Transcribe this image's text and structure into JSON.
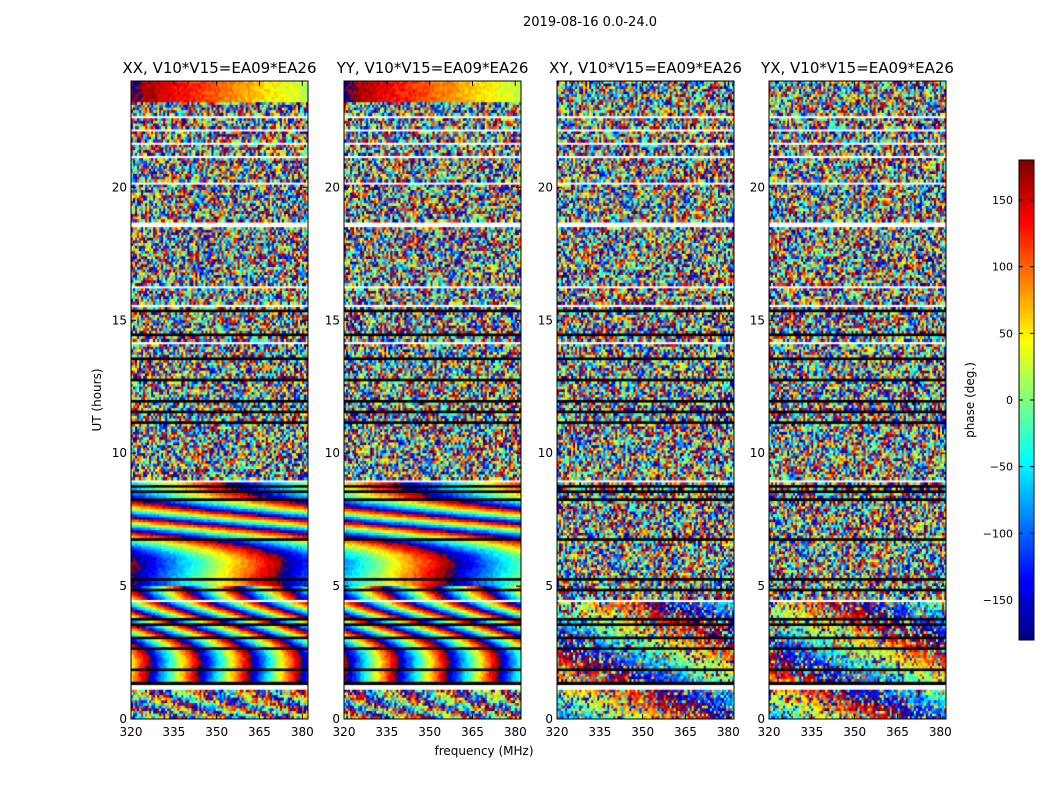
{
  "chart_data": {
    "type": "heatmap",
    "title": "2019-08-16 0.0-24.0",
    "xlabel": "frequency (MHz)",
    "ylabel": "UT (hours)",
    "x_range": [
      320,
      382
    ],
    "y_range": [
      0,
      24
    ],
    "x_ticks": [
      320,
      335,
      350,
      365,
      380
    ],
    "y_ticks": [
      0,
      5,
      10,
      15,
      20
    ],
    "colorbar": {
      "label": "phase (deg.)",
      "range": [
        -180,
        180
      ],
      "ticks": [
        -150,
        -100,
        -50,
        0,
        50,
        100,
        150
      ],
      "colormap": "jet",
      "colors": [
        "#00007f",
        "#0000ff",
        "#007fff",
        "#00ffff",
        "#7fff7f",
        "#ffff00",
        "#ff7f00",
        "#ff0000",
        "#7f0000"
      ]
    },
    "blank_rows_hours": [
      [
        1.1,
        1.3
      ],
      [
        4.4,
        4.5
      ],
      [
        8.9,
        9.0
      ],
      [
        13.05,
        13.15
      ],
      [
        14.15,
        14.25
      ],
      [
        15.55,
        15.65
      ],
      [
        16.25,
        16.3
      ],
      [
        17.2,
        17.25
      ],
      [
        18.1,
        18.15
      ],
      [
        18.55,
        18.75
      ],
      [
        19.05,
        19.15
      ],
      [
        20.1,
        20.2
      ],
      [
        21.1,
        21.2
      ],
      [
        21.6,
        21.75
      ],
      [
        22.1,
        22.2
      ],
      [
        22.65,
        22.75
      ],
      [
        23.0,
        23.05
      ]
    ],
    "black_rows_hours": [
      [
        1.3,
        1.45
      ],
      [
        1.6,
        1.65
      ],
      [
        1.85,
        1.9
      ],
      [
        2.2,
        2.25
      ],
      [
        2.65,
        2.7
      ],
      [
        3.05,
        3.1
      ],
      [
        3.55,
        3.6
      ],
      [
        3.75,
        3.85
      ],
      [
        4.8,
        4.9
      ],
      [
        5.25,
        5.3
      ],
      [
        5.7,
        5.75
      ],
      [
        6.15,
        6.2
      ],
      [
        6.75,
        6.8
      ],
      [
        7.3,
        7.35
      ],
      [
        7.7,
        7.75
      ],
      [
        8.2,
        8.3
      ],
      [
        8.55,
        8.6
      ],
      [
        8.7,
        8.85
      ],
      [
        11.05,
        11.25
      ],
      [
        11.5,
        11.6
      ],
      [
        11.95,
        12.05
      ],
      [
        12.35,
        12.4
      ],
      [
        12.75,
        12.85
      ],
      [
        13.55,
        13.6
      ],
      [
        14.45,
        14.5
      ],
      [
        14.9,
        14.95
      ],
      [
        15.3,
        15.35
      ],
      [
        23.1,
        23.15
      ]
    ],
    "panels": [
      {
        "title": "XX, V10*V15=EA09*EA26",
        "pattern": "fringe",
        "phase_offset": 0.0
      },
      {
        "title": "YY, V10*V15=EA09*EA26",
        "pattern": "fringe",
        "phase_offset": 2.3
      },
      {
        "title": "XY, V10*V15=EA09*EA26",
        "pattern": "noise",
        "phase_offset": 0.0
      },
      {
        "title": "YX, V10*V15=EA09*EA26",
        "pattern": "noise",
        "phase_offset": 1.1
      }
    ]
  }
}
